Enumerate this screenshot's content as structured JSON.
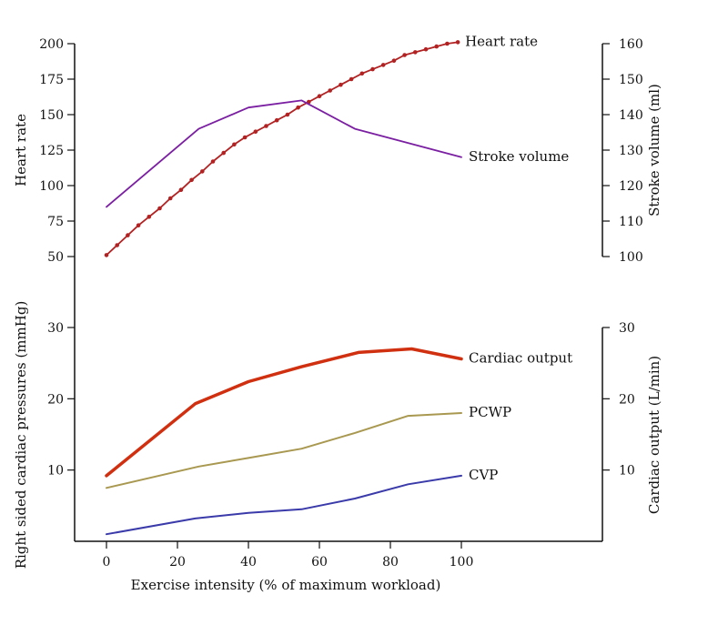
{
  "chart_data": {
    "type": "line",
    "xlabel": "Exercise intensity (% of maximum workload)",
    "xlim": [
      -8,
      140
    ],
    "x_ticks": [
      0,
      20,
      40,
      60,
      80,
      100
    ],
    "panels": [
      {
        "name": "top",
        "left_axis": {
          "label": "Heart rate",
          "ylim": [
            50,
            200
          ],
          "ticks": [
            50,
            75,
            100,
            125,
            150,
            175,
            200
          ]
        },
        "right_axis": {
          "label": "Stroke volume (ml)",
          "ylim": [
            100,
            160
          ],
          "ticks": [
            100,
            110,
            120,
            130,
            140,
            150,
            160
          ]
        },
        "series": [
          {
            "name": "Heart rate",
            "axis": "left",
            "color": "#b22222",
            "marker": "dot",
            "x": [
              0,
              3,
              6,
              9,
              12,
              15,
              18,
              21,
              24,
              27,
              30,
              33,
              36,
              39,
              42,
              45,
              48,
              51,
              54,
              57,
              60,
              63,
              66,
              69,
              72,
              75,
              78,
              81,
              84,
              87,
              90,
              93,
              96,
              99
            ],
            "values": [
              51,
              58,
              65,
              72,
              78,
              84,
              91,
              97,
              104,
              110,
              117,
              123,
              129,
              134,
              138,
              142,
              146,
              150,
              155,
              159,
              163,
              167,
              171,
              175,
              179,
              182,
              185,
              188,
              192,
              194,
              196,
              198,
              200,
              201
            ]
          },
          {
            "name": "Stroke volume",
            "axis": "right",
            "color": "#7b1fa2",
            "marker": "none",
            "x": [
              0,
              26,
              40,
              55,
              70,
              100
            ],
            "values": [
              114,
              136,
              142,
              144,
              136,
              128
            ]
          }
        ]
      },
      {
        "name": "bottom",
        "left_axis": {
          "label": "Right sided cardiac pressures (mmHg)",
          "ylim": [
            0,
            30
          ],
          "ticks": [
            10,
            20,
            30
          ]
        },
        "right_axis": {
          "label": "Cardiac output (L/min)",
          "ylim": [
            0,
            30
          ],
          "ticks": [
            10,
            20,
            30
          ]
        },
        "series": [
          {
            "name": "Cardiac output",
            "axis": "right",
            "color": "#d03010",
            "width": 3.5,
            "x": [
              0,
              25,
              40,
              55,
              71,
              86,
              100
            ],
            "values": [
              9.2,
              19.3,
              22.4,
              24.5,
              26.5,
              27.0,
              25.6
            ]
          },
          {
            "name": "PCWP",
            "axis": "left",
            "color": "#a89850",
            "width": 2,
            "x": [
              0,
              26,
              40,
              55,
              70,
              85,
              100
            ],
            "values": [
              7.5,
              10.5,
              11.7,
              13.0,
              15.2,
              17.6,
              18.0
            ]
          },
          {
            "name": "CVP",
            "axis": "left",
            "color": "#3a3aaa",
            "width": 2,
            "x": [
              0,
              25,
              40,
              55,
              70,
              85,
              100
            ],
            "values": [
              1.0,
              3.2,
              4.0,
              4.5,
              6.0,
              8.0,
              9.2
            ]
          }
        ]
      }
    ]
  }
}
